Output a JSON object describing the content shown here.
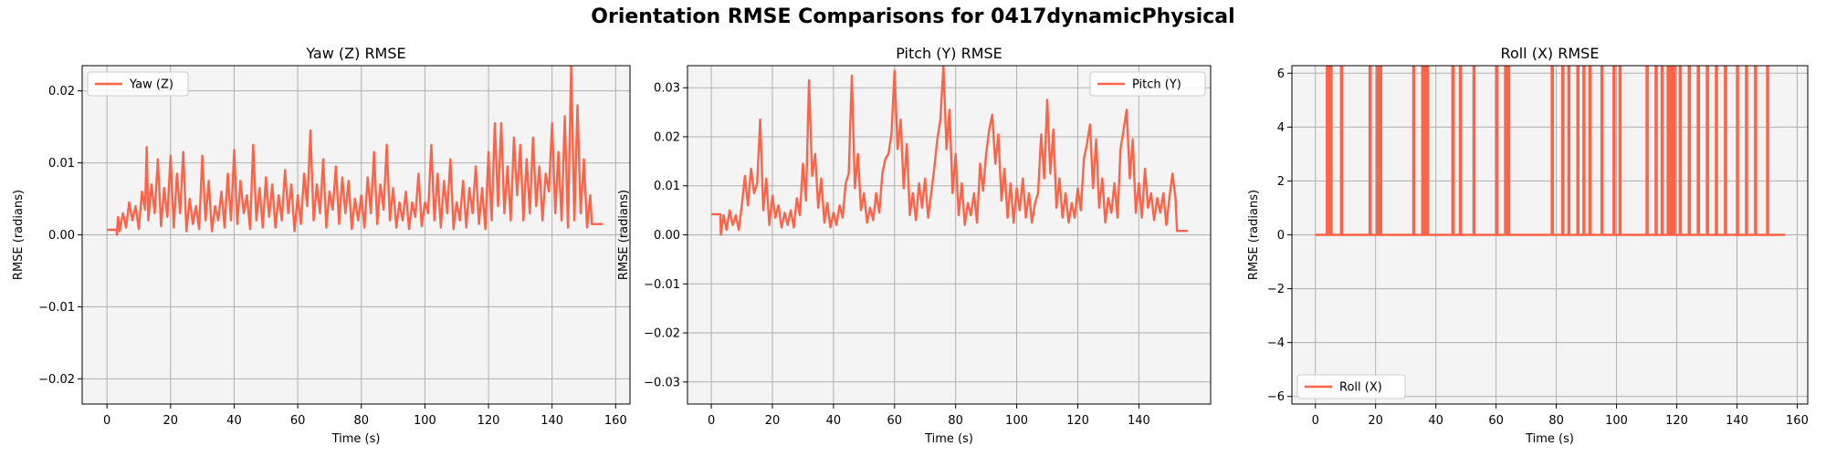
{
  "figure": {
    "suptitle": "Orientation RMSE Comparisons for 0417dynamicPhysical",
    "colors": {
      "line": "#FF6347",
      "axes_bg": "#F4F4F4",
      "grid": "#B0B0B0",
      "spine": "#000000"
    }
  },
  "chart_data": [
    {
      "type": "line",
      "title": "Yaw (Z) RMSE",
      "xlabel": "Time (s)",
      "ylabel": "RMSE (radians)",
      "xlim": [
        -7.8,
        164.5
      ],
      "ylim": [
        -0.0235,
        0.0235
      ],
      "xticks": [
        0,
        20,
        40,
        60,
        80,
        100,
        120,
        140,
        160
      ],
      "xtick_labels": [
        "0",
        "20",
        "40",
        "60",
        "80",
        "100",
        "120",
        "140",
        "160"
      ],
      "yticks": [
        -0.02,
        -0.01,
        0.0,
        0.01,
        0.02
      ],
      "ytick_labels": [
        "−0.02",
        "−0.01",
        "0.00",
        "0.01",
        "0.02"
      ],
      "grid": true,
      "legend": {
        "location": "upper left",
        "entries": [
          "Yaw (Z)"
        ]
      },
      "series": [
        {
          "name": "Yaw (Z)",
          "x": [
            0,
            3,
            3.1,
            3.5,
            4,
            5,
            6,
            7,
            8,
            9,
            10,
            11,
            12,
            12.5,
            13,
            14,
            15,
            16,
            17,
            18,
            19,
            20,
            21,
            22,
            23,
            24,
            25,
            26,
            27,
            28,
            29,
            30,
            31,
            32,
            33,
            34,
            35,
            36,
            37,
            38,
            39,
            40,
            41,
            42,
            43,
            44,
            45,
            46,
            47,
            48,
            49,
            50,
            51,
            52,
            53,
            54,
            55,
            56,
            57,
            58,
            59,
            60,
            61,
            62,
            63,
            64,
            65,
            66,
            67,
            68,
            69,
            70,
            71,
            72,
            73,
            74,
            75,
            76,
            77,
            78,
            79,
            80,
            81,
            82,
            83,
            84,
            85,
            86,
            87,
            88,
            89,
            90,
            91,
            92,
            93,
            94,
            95,
            96,
            97,
            98,
            99,
            100,
            101,
            102,
            103,
            104,
            105,
            106,
            107,
            108,
            109,
            110,
            111,
            112,
            113,
            114,
            115,
            116,
            117,
            118,
            119,
            120,
            121,
            122,
            123,
            124,
            125,
            126,
            127,
            128,
            129,
            130,
            131,
            132,
            133,
            134,
            135,
            136,
            137,
            138,
            139,
            140,
            141,
            142,
            143,
            144,
            145,
            146,
            147,
            148,
            149,
            150,
            151,
            152,
            152.5,
            156
          ],
          "y": [
            0.0007,
            0.0007,
            0.0,
            0.0025,
            0.0005,
            0.003,
            0.001,
            0.0045,
            0.002,
            0.004,
            0.0008,
            0.006,
            0.0035,
            0.0122,
            0.002,
            0.007,
            0.003,
            0.0105,
            0.0012,
            0.0065,
            0.0025,
            0.011,
            0.001,
            0.0085,
            0.003,
            0.0115,
            0.0005,
            0.005,
            0.0015,
            0.004,
            0.0008,
            0.011,
            0.002,
            0.0075,
            0.0005,
            0.004,
            0.002,
            0.006,
            0.001,
            0.0085,
            0.002,
            0.0118,
            0.0015,
            0.0075,
            0.003,
            0.0055,
            0.0008,
            0.0125,
            0.002,
            0.0065,
            0.001,
            0.008,
            0.0025,
            0.007,
            0.001,
            0.0055,
            0.002,
            0.009,
            0.003,
            0.007,
            0.0005,
            0.0055,
            0.0015,
            0.0085,
            0.004,
            0.0145,
            0.002,
            0.007,
            0.003,
            0.0105,
            0.001,
            0.006,
            0.0035,
            0.0095,
            0.0015,
            0.008,
            0.003,
            0.0075,
            0.0008,
            0.005,
            0.002,
            0.0055,
            0.001,
            0.008,
            0.003,
            0.0115,
            0.0015,
            0.007,
            0.0035,
            0.0125,
            0.002,
            0.0065,
            0.001,
            0.0045,
            0.002,
            0.006,
            0.0008,
            0.0045,
            0.0025,
            0.0085,
            0.0012,
            0.0045,
            0.003,
            0.0125,
            0.002,
            0.0085,
            0.001,
            0.0075,
            0.003,
            0.0105,
            0.0008,
            0.0045,
            0.002,
            0.0075,
            0.001,
            0.0065,
            0.003,
            0.0095,
            0.0015,
            0.0065,
            0.0008,
            0.0115,
            0.002,
            0.0155,
            0.004,
            0.0155,
            0.003,
            0.0095,
            0.002,
            0.0135,
            0.0055,
            0.0125,
            0.002,
            0.0105,
            0.003,
            0.0135,
            0.004,
            0.0095,
            0.002,
            0.0085,
            0.006,
            0.0155,
            0.003,
            0.0115,
            0.002,
            0.0165,
            0.001,
            0.0235,
            0.002,
            0.018,
            0.003,
            0.0105,
            0.001,
            0.0055,
            0.0015,
            0.0015
          ]
        }
      ]
    },
    {
      "type": "line",
      "title": "Pitch (Y) RMSE",
      "xlabel": "Time (s)",
      "ylabel": "RMSE (radians)",
      "xlim": [
        -7.8,
        163.5
      ],
      "ylim": [
        -0.0345,
        0.0345
      ],
      "xticks": [
        0,
        20,
        40,
        60,
        80,
        100,
        120,
        140
      ],
      "xtick_labels": [
        "0",
        "20",
        "40",
        "60",
        "80",
        "100",
        "120",
        "140"
      ],
      "yticks": [
        -0.03,
        -0.02,
        -0.01,
        0.0,
        0.01,
        0.02,
        0.03
      ],
      "ytick_labels": [
        "−0.03",
        "−0.02",
        "−0.01",
        "0.00",
        "0.01",
        "0.02",
        "0.03"
      ],
      "grid": true,
      "legend": {
        "location": "upper right",
        "entries": [
          "Pitch (Y)"
        ]
      },
      "series": [
        {
          "name": "Pitch (Y)",
          "x": [
            0,
            3,
            3.1,
            4,
            5,
            6,
            7,
            8,
            9,
            10,
            11,
            12,
            13,
            14,
            15,
            16,
            17,
            18,
            19,
            20,
            21,
            22,
            23,
            24,
            25,
            26,
            27,
            28,
            29,
            30,
            31,
            32,
            33,
            34,
            35,
            36,
            37,
            38,
            39,
            40,
            41,
            42,
            43,
            44,
            45,
            46,
            47,
            48,
            49,
            50,
            51,
            52,
            53,
            54,
            55,
            56,
            57,
            58,
            59,
            60,
            61,
            62,
            63,
            64,
            65,
            66,
            67,
            68,
            69,
            70,
            71,
            72,
            73,
            74,
            75,
            76,
            77,
            78,
            79,
            80,
            81,
            82,
            83,
            84,
            85,
            86,
            87,
            88,
            89,
            90,
            91,
            92,
            93,
            94,
            95,
            96,
            97,
            98,
            99,
            100,
            101,
            102,
            103,
            104,
            105,
            106,
            107,
            108,
            109,
            110,
            111,
            112,
            113,
            114,
            115,
            116,
            117,
            118,
            119,
            120,
            121,
            122,
            123,
            124,
            125,
            126,
            127,
            128,
            129,
            130,
            131,
            132,
            133,
            134,
            135,
            136,
            137,
            138,
            139,
            140,
            141,
            142,
            143,
            144,
            145,
            146,
            147,
            148,
            149,
            150,
            151,
            152,
            152.5,
            156
          ],
          "y": [
            0.0042,
            0.0042,
            0.0,
            0.004,
            0.001,
            0.005,
            0.002,
            0.004,
            0.001,
            0.006,
            0.012,
            0.006,
            0.0135,
            0.0085,
            0.0105,
            0.0235,
            0.005,
            0.0115,
            0.002,
            0.008,
            0.0035,
            0.006,
            0.0015,
            0.0045,
            0.002,
            0.005,
            0.0015,
            0.0075,
            0.004,
            0.0145,
            0.007,
            0.0315,
            0.012,
            0.0165,
            0.0055,
            0.0115,
            0.0025,
            0.0065,
            0.0015,
            0.0045,
            0.002,
            0.006,
            0.0035,
            0.0105,
            0.0125,
            0.0325,
            0.0095,
            0.0165,
            0.005,
            0.0085,
            0.0025,
            0.0055,
            0.003,
            0.0085,
            0.0045,
            0.0125,
            0.0155,
            0.0165,
            0.0205,
            0.0335,
            0.0175,
            0.0235,
            0.0095,
            0.0185,
            0.004,
            0.0085,
            0.003,
            0.0105,
            0.0055,
            0.0115,
            0.0035,
            0.0085,
            0.0135,
            0.0195,
            0.0235,
            0.0345,
            0.0175,
            0.0255,
            0.0085,
            0.0165,
            0.004,
            0.0105,
            0.002,
            0.0065,
            0.004,
            0.0085,
            0.0025,
            0.0145,
            0.009,
            0.0165,
            0.0215,
            0.0245,
            0.0145,
            0.0205,
            0.007,
            0.0135,
            0.0035,
            0.0105,
            0.0025,
            0.0095,
            0.005,
            0.0115,
            0.0035,
            0.0085,
            0.0025,
            0.0065,
            0.0085,
            0.0205,
            0.0115,
            0.0275,
            0.0125,
            0.0215,
            0.0055,
            0.0115,
            0.0035,
            0.0085,
            0.0025,
            0.0065,
            0.0035,
            0.0095,
            0.005,
            0.0155,
            0.0185,
            0.0225,
            0.0095,
            0.0195,
            0.0055,
            0.0115,
            0.0025,
            0.0075,
            0.0045,
            0.0105,
            0.0035,
            0.0175,
            0.0215,
            0.0255,
            0.0115,
            0.0195,
            0.0045,
            0.0105,
            0.0035,
            0.0135,
            0.0055,
            0.0085,
            0.003,
            0.0075,
            0.0045,
            0.0085,
            0.002,
            0.0075,
            0.0125,
            0.0075,
            0.0008,
            0.0008
          ]
        }
      ]
    },
    {
      "type": "line",
      "title": "Roll (X) RMSE",
      "xlabel": "Time (s)",
      "ylabel": "RMSE (radians)",
      "xlim": [
        -7.8,
        163.5
      ],
      "ylim": [
        -6.28,
        6.28
      ],
      "xticks": [
        0,
        20,
        40,
        60,
        80,
        100,
        120,
        140,
        160
      ],
      "xtick_labels": [
        "0",
        "20",
        "40",
        "60",
        "80",
        "100",
        "120",
        "140",
        "160"
      ],
      "yticks": [
        -6,
        -4,
        -2,
        0,
        2,
        4,
        6
      ],
      "ytick_labels": [
        "−6",
        "−4",
        "−2",
        "0",
        "2",
        "4",
        "6"
      ],
      "grid": true,
      "legend": {
        "location": "lower left",
        "entries": [
          "Roll (X)"
        ]
      },
      "series": [
        {
          "name": "Roll (X)",
          "x_range": [
            0,
            156
          ],
          "baseline": 0.0,
          "spike_value": 6.28,
          "spike_times": [
            3.8,
            4.2,
            4.6,
            5.0,
            8.5,
            18.0,
            20.5,
            21.0,
            21.5,
            32.5,
            35.5,
            36.5,
            37.0,
            45.5,
            48.0,
            52.5,
            60.0,
            63.0,
            63.5,
            64.0,
            78.5,
            82.0,
            84.0,
            87.0,
            89.0,
            91.0,
            95.0,
            99.0,
            101.0,
            110.0,
            113.0,
            115.0,
            117.0,
            118.0,
            119.0,
            121.0,
            124.0,
            127.0,
            130.0,
            133.0,
            136.0,
            140.0,
            143.0,
            146.0,
            150.0
          ]
        }
      ]
    }
  ]
}
